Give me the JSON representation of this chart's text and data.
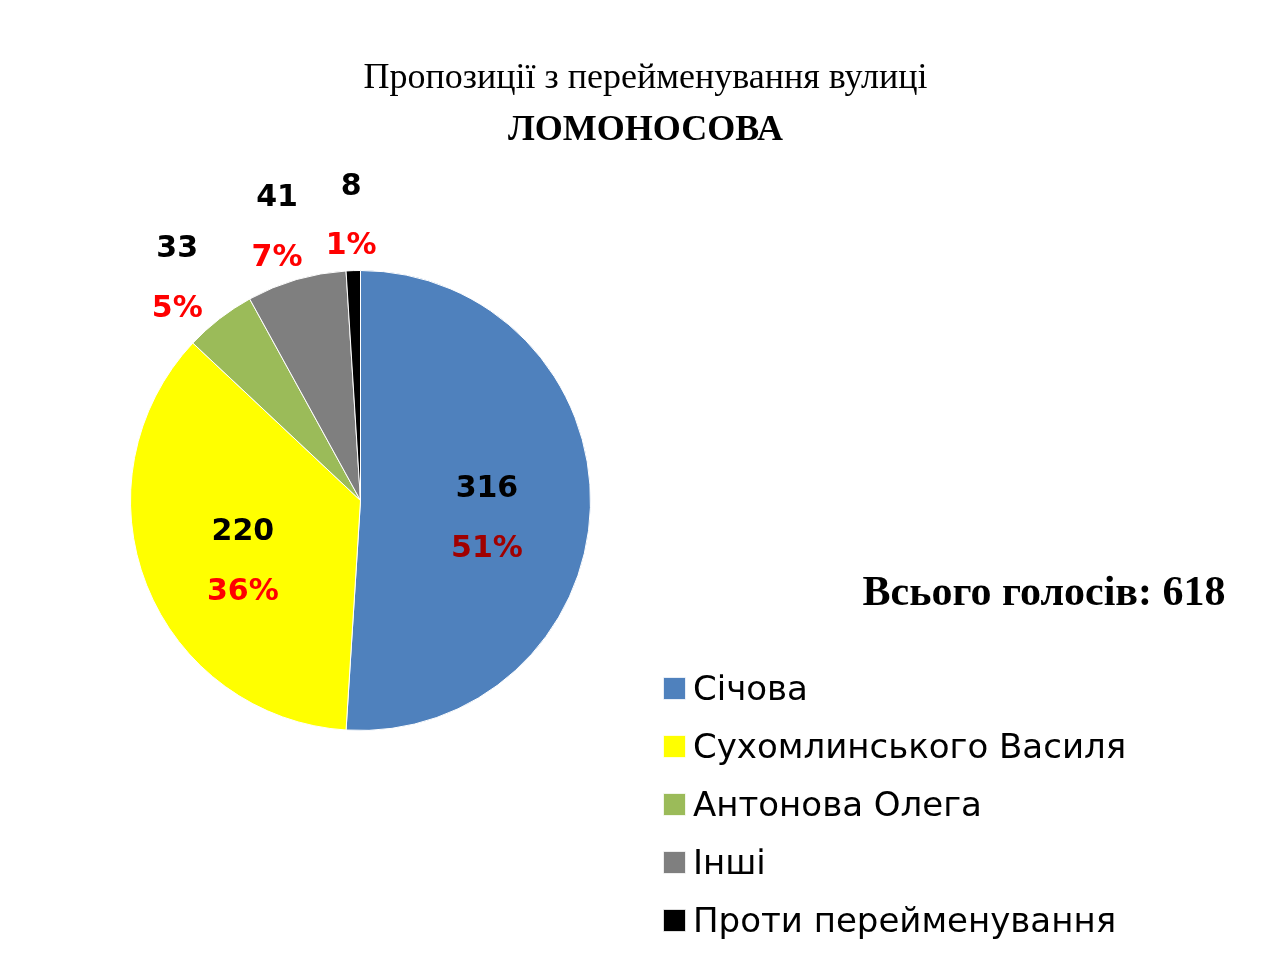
{
  "chart_data": {
    "type": "pie",
    "title": "Пропозиції з перейменування вулиці",
    "subtitle": "ЛОМОНОСОВА",
    "categories": [
      "Січова",
      "Сухомлинського Василя",
      "Антонова Олега",
      "Інші",
      "Проти перейменування"
    ],
    "values": [
      51,
      36,
      5,
      7,
      1
    ],
    "colors": [
      "#4f81bd",
      "#ffff00",
      "#9bbb59",
      "#7f7f7f",
      "#000000"
    ],
    "value_labels": [
      "316\n51%",
      "220\n36%",
      "33\n5%",
      "41\n7%",
      "8\n1%"
    ],
    "annotations": [
      "Всього голосів: 618"
    ],
    "legend": "bottom right"
  }
}
